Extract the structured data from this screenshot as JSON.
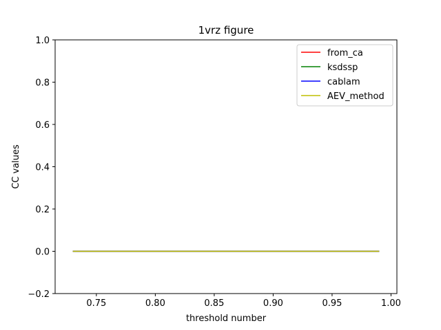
{
  "chart_data": {
    "type": "line",
    "title": "1vrz figure",
    "xlabel": "threshold number",
    "ylabel": "CC values",
    "xlim": [
      0.715,
      1.005
    ],
    "ylim": [
      -0.2,
      1.0
    ],
    "xticks": [
      0.75,
      0.8,
      0.85,
      0.9,
      0.95,
      1.0
    ],
    "xtick_labels": [
      "0.75",
      "0.80",
      "0.85",
      "0.90",
      "0.95",
      "1.00"
    ],
    "yticks": [
      -0.2,
      0.0,
      0.2,
      0.4,
      0.6,
      0.8,
      1.0
    ],
    "ytick_labels": [
      "−0.2",
      "0.0",
      "0.2",
      "0.4",
      "0.6",
      "0.8",
      "1.0"
    ],
    "grid": false,
    "legend_position": "top-right",
    "series": [
      {
        "name": "from_ca",
        "color": "#ff0000",
        "x": [
          0.73,
          0.99
        ],
        "y": [
          0.0,
          0.0
        ]
      },
      {
        "name": "ksdssp",
        "color": "#008000",
        "x": [
          0.73,
          0.99
        ],
        "y": [
          0.0,
          0.0
        ]
      },
      {
        "name": "cablam",
        "color": "#0000ff",
        "x": [
          0.73,
          0.99
        ],
        "y": [
          0.0,
          0.0
        ]
      },
      {
        "name": "AEV_method",
        "color": "#bfbf00",
        "x": [
          0.73,
          0.99
        ],
        "y": [
          0.0,
          0.0
        ]
      }
    ]
  }
}
